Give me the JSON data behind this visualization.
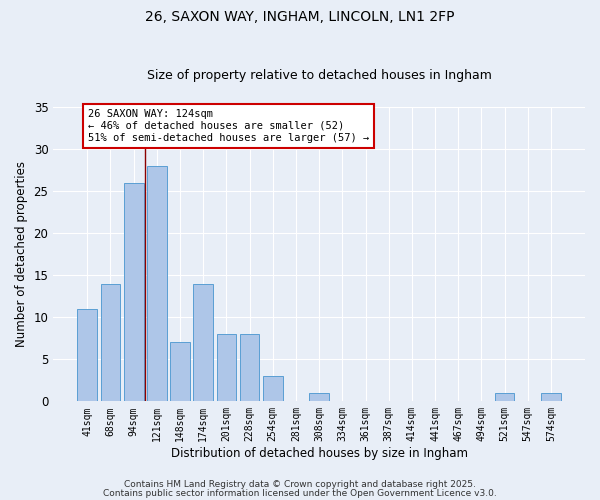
{
  "title1": "26, SAXON WAY, INGHAM, LINCOLN, LN1 2FP",
  "title2": "Size of property relative to detached houses in Ingham",
  "xlabel": "Distribution of detached houses by size in Ingham",
  "ylabel": "Number of detached properties",
  "categories": [
    "41sqm",
    "68sqm",
    "94sqm",
    "121sqm",
    "148sqm",
    "174sqm",
    "201sqm",
    "228sqm",
    "254sqm",
    "281sqm",
    "308sqm",
    "334sqm",
    "361sqm",
    "387sqm",
    "414sqm",
    "441sqm",
    "467sqm",
    "494sqm",
    "521sqm",
    "547sqm",
    "574sqm"
  ],
  "values": [
    11,
    14,
    26,
    28,
    7,
    14,
    8,
    8,
    3,
    0,
    1,
    0,
    0,
    0,
    0,
    0,
    0,
    0,
    1,
    0,
    1
  ],
  "bar_color": "#aec6e8",
  "bar_edge_color": "#5a9fd4",
  "background_color": "#e8eef7",
  "grid_color": "#ffffff",
  "vline_x_index": 3,
  "vline_color": "#8b0000",
  "annotation_text": "26 SAXON WAY: 124sqm\n← 46% of detached houses are smaller (52)\n51% of semi-detached houses are larger (57) →",
  "annotation_box_edge_color": "#cc0000",
  "annotation_box_face_color": "#ffffff",
  "ylim": [
    0,
    35
  ],
  "yticks": [
    0,
    5,
    10,
    15,
    20,
    25,
    30,
    35
  ],
  "footer1": "Contains HM Land Registry data © Crown copyright and database right 2025.",
  "footer2": "Contains public sector information licensed under the Open Government Licence v3.0."
}
